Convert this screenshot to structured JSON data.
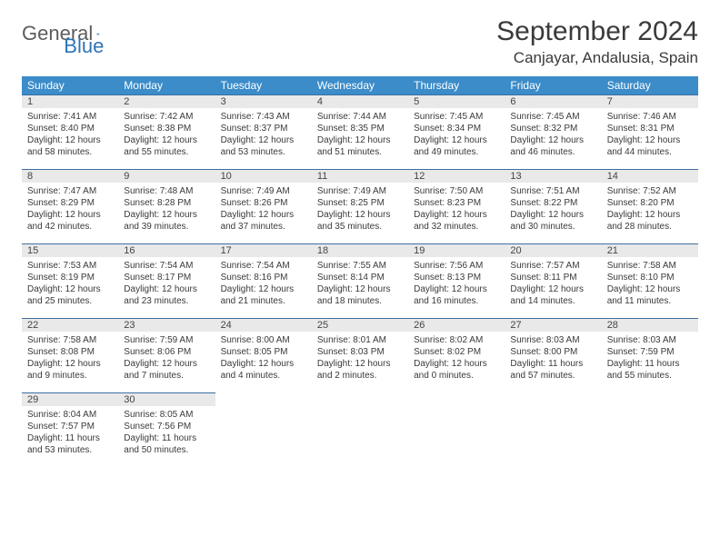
{
  "logo": {
    "textGeneral": "General",
    "textBlue": "Blue",
    "shapeColor": "#2e74b5"
  },
  "title": "September 2024",
  "location": "Canjayar, Andalusia, Spain",
  "headerBg": "#3b8cc9",
  "weekdays": [
    "Sunday",
    "Monday",
    "Tuesday",
    "Wednesday",
    "Thursday",
    "Friday",
    "Saturday"
  ],
  "weeks": [
    [
      {
        "n": "1",
        "sr": "7:41 AM",
        "ss": "8:40 PM",
        "dl": "12 hours and 58 minutes."
      },
      {
        "n": "2",
        "sr": "7:42 AM",
        "ss": "8:38 PM",
        "dl": "12 hours and 55 minutes."
      },
      {
        "n": "3",
        "sr": "7:43 AM",
        "ss": "8:37 PM",
        "dl": "12 hours and 53 minutes."
      },
      {
        "n": "4",
        "sr": "7:44 AM",
        "ss": "8:35 PM",
        "dl": "12 hours and 51 minutes."
      },
      {
        "n": "5",
        "sr": "7:45 AM",
        "ss": "8:34 PM",
        "dl": "12 hours and 49 minutes."
      },
      {
        "n": "6",
        "sr": "7:45 AM",
        "ss": "8:32 PM",
        "dl": "12 hours and 46 minutes."
      },
      {
        "n": "7",
        "sr": "7:46 AM",
        "ss": "8:31 PM",
        "dl": "12 hours and 44 minutes."
      }
    ],
    [
      {
        "n": "8",
        "sr": "7:47 AM",
        "ss": "8:29 PM",
        "dl": "12 hours and 42 minutes."
      },
      {
        "n": "9",
        "sr": "7:48 AM",
        "ss": "8:28 PM",
        "dl": "12 hours and 39 minutes."
      },
      {
        "n": "10",
        "sr": "7:49 AM",
        "ss": "8:26 PM",
        "dl": "12 hours and 37 minutes."
      },
      {
        "n": "11",
        "sr": "7:49 AM",
        "ss": "8:25 PM",
        "dl": "12 hours and 35 minutes."
      },
      {
        "n": "12",
        "sr": "7:50 AM",
        "ss": "8:23 PM",
        "dl": "12 hours and 32 minutes."
      },
      {
        "n": "13",
        "sr": "7:51 AM",
        "ss": "8:22 PM",
        "dl": "12 hours and 30 minutes."
      },
      {
        "n": "14",
        "sr": "7:52 AM",
        "ss": "8:20 PM",
        "dl": "12 hours and 28 minutes."
      }
    ],
    [
      {
        "n": "15",
        "sr": "7:53 AM",
        "ss": "8:19 PM",
        "dl": "12 hours and 25 minutes."
      },
      {
        "n": "16",
        "sr": "7:54 AM",
        "ss": "8:17 PM",
        "dl": "12 hours and 23 minutes."
      },
      {
        "n": "17",
        "sr": "7:54 AM",
        "ss": "8:16 PM",
        "dl": "12 hours and 21 minutes."
      },
      {
        "n": "18",
        "sr": "7:55 AM",
        "ss": "8:14 PM",
        "dl": "12 hours and 18 minutes."
      },
      {
        "n": "19",
        "sr": "7:56 AM",
        "ss": "8:13 PM",
        "dl": "12 hours and 16 minutes."
      },
      {
        "n": "20",
        "sr": "7:57 AM",
        "ss": "8:11 PM",
        "dl": "12 hours and 14 minutes."
      },
      {
        "n": "21",
        "sr": "7:58 AM",
        "ss": "8:10 PM",
        "dl": "12 hours and 11 minutes."
      }
    ],
    [
      {
        "n": "22",
        "sr": "7:58 AM",
        "ss": "8:08 PM",
        "dl": "12 hours and 9 minutes."
      },
      {
        "n": "23",
        "sr": "7:59 AM",
        "ss": "8:06 PM",
        "dl": "12 hours and 7 minutes."
      },
      {
        "n": "24",
        "sr": "8:00 AM",
        "ss": "8:05 PM",
        "dl": "12 hours and 4 minutes."
      },
      {
        "n": "25",
        "sr": "8:01 AM",
        "ss": "8:03 PM",
        "dl": "12 hours and 2 minutes."
      },
      {
        "n": "26",
        "sr": "8:02 AM",
        "ss": "8:02 PM",
        "dl": "12 hours and 0 minutes."
      },
      {
        "n": "27",
        "sr": "8:03 AM",
        "ss": "8:00 PM",
        "dl": "11 hours and 57 minutes."
      },
      {
        "n": "28",
        "sr": "8:03 AM",
        "ss": "7:59 PM",
        "dl": "11 hours and 55 minutes."
      }
    ],
    [
      {
        "n": "29",
        "sr": "8:04 AM",
        "ss": "7:57 PM",
        "dl": "11 hours and 53 minutes."
      },
      {
        "n": "30",
        "sr": "8:05 AM",
        "ss": "7:56 PM",
        "dl": "11 hours and 50 minutes."
      },
      null,
      null,
      null,
      null,
      null
    ]
  ],
  "labels": {
    "sunrise": "Sunrise: ",
    "sunset": "Sunset: ",
    "daylight": "Daylight: "
  }
}
